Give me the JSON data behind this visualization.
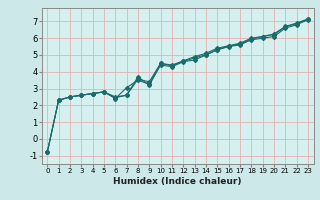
{
  "title": "",
  "xlabel": "Humidex (Indice chaleur)",
  "ylabel": "",
  "background_color": "#cce8e8",
  "plot_bg_color": "#d6f0f0",
  "grid_color": "#e8b0b0",
  "line_color": "#1a6b6b",
  "spine_color": "#888888",
  "xlim": [
    -0.5,
    23.5
  ],
  "ylim": [
    -1.5,
    7.8
  ],
  "xticks": [
    0,
    1,
    2,
    3,
    4,
    5,
    6,
    7,
    8,
    9,
    10,
    11,
    12,
    13,
    14,
    15,
    16,
    17,
    18,
    19,
    20,
    21,
    22,
    23
  ],
  "yticks": [
    -1,
    0,
    1,
    2,
    3,
    4,
    5,
    6,
    7
  ],
  "line1_x": [
    0,
    1,
    2,
    3,
    4,
    5,
    6,
    7,
    8,
    9,
    10,
    11,
    12,
    13,
    14,
    15,
    16,
    17,
    18,
    19,
    20,
    21,
    22,
    23
  ],
  "line1_y": [
    -0.8,
    2.3,
    2.5,
    2.6,
    2.7,
    2.8,
    2.5,
    2.6,
    3.7,
    3.2,
    4.4,
    4.3,
    4.6,
    4.7,
    5.0,
    5.3,
    5.5,
    5.6,
    5.9,
    6.0,
    6.1,
    6.6,
    6.8,
    7.1
  ],
  "line2_x": [
    0,
    1,
    2,
    3,
    4,
    5,
    6,
    7,
    8,
    9,
    10,
    11,
    12,
    13,
    14,
    15,
    16,
    17,
    18,
    19,
    20,
    21,
    22,
    23
  ],
  "line2_y": [
    -0.8,
    2.3,
    2.5,
    2.6,
    2.7,
    2.8,
    2.4,
    3.05,
    3.5,
    3.25,
    4.5,
    4.4,
    4.65,
    4.9,
    5.1,
    5.4,
    5.55,
    5.7,
    6.0,
    6.1,
    6.25,
    6.7,
    6.9,
    7.15
  ],
  "line3_x": [
    0,
    1,
    2,
    3,
    4,
    5,
    6,
    7,
    8,
    9,
    10,
    11,
    12,
    13,
    14,
    15,
    16,
    17,
    18,
    19,
    20,
    21,
    22,
    23
  ],
  "line3_y": [
    -0.8,
    2.3,
    2.5,
    2.6,
    2.7,
    2.8,
    2.45,
    2.6,
    3.55,
    3.4,
    4.5,
    4.35,
    4.62,
    4.82,
    5.02,
    5.32,
    5.52,
    5.65,
    5.95,
    6.1,
    6.22,
    6.67,
    6.87,
    7.12
  ],
  "marker": "D",
  "markersize": 2.0,
  "linewidth": 0.8,
  "xlabel_fontsize": 6.5,
  "tick_fontsize_x": 5.0,
  "tick_fontsize_y": 6.0
}
